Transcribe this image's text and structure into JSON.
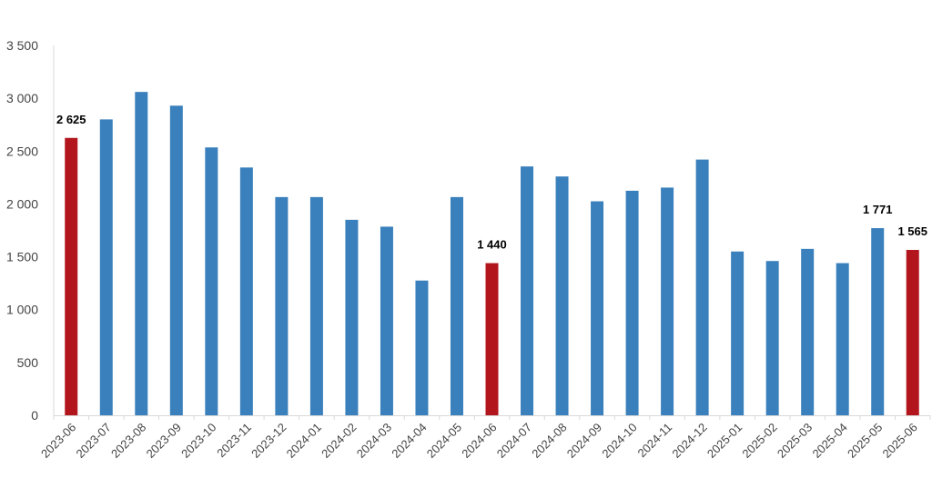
{
  "chart_data": {
    "type": "bar",
    "title": "",
    "xlabel": "",
    "ylabel": "",
    "ylim": [
      0,
      3500
    ],
    "yticks": [
      0,
      500,
      1000,
      1500,
      2000,
      2500,
      3000,
      3500
    ],
    "ytick_labels": [
      "0",
      "500",
      "1 000",
      "1 500",
      "2 000",
      "2 500",
      "3 000",
      "3 500"
    ],
    "grid": false,
    "legend": "none",
    "categories": [
      "2023-06",
      "2023-07",
      "2023-08",
      "2023-09",
      "2023-10",
      "2023-11",
      "2023-12",
      "2024-01",
      "2024-02",
      "2024-03",
      "2024-04",
      "2024-05",
      "2024-06",
      "2024-07",
      "2024-08",
      "2024-09",
      "2024-10",
      "2024-11",
      "2024-12",
      "2025-01",
      "2025-02",
      "2025-03",
      "2025-04",
      "2025-05",
      "2025-06"
    ],
    "values": [
      2625,
      2800,
      3060,
      2930,
      2535,
      2345,
      2065,
      2065,
      1850,
      1785,
      1275,
      2065,
      1440,
      2355,
      2260,
      2025,
      2125,
      2155,
      2420,
      1550,
      1460,
      1575,
      1440,
      1771,
      1565
    ],
    "highlight": [
      true,
      false,
      false,
      false,
      false,
      false,
      false,
      false,
      false,
      false,
      false,
      false,
      true,
      false,
      false,
      false,
      false,
      false,
      false,
      false,
      false,
      false,
      false,
      false,
      true
    ],
    "data_labels": [
      {
        "index": 0,
        "text": "2 625"
      },
      {
        "index": 12,
        "text": "1 440"
      },
      {
        "index": 23,
        "text": "1 771"
      },
      {
        "index": 24,
        "text": "1 565"
      }
    ],
    "colors": {
      "default": "#3a80bc",
      "highlight": "#b2161c",
      "axis": "#d9d9d9"
    }
  }
}
